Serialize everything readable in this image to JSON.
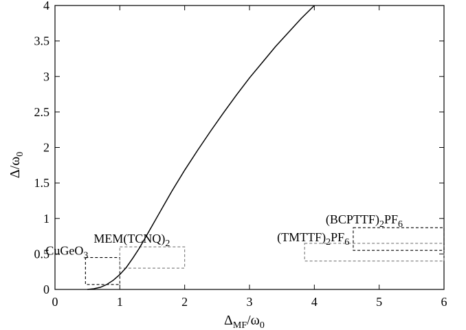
{
  "chart_data": {
    "type": "line",
    "xlabel": "Δ",
    "xlabel_sub": "MF",
    "xlabel_tail": "/ω",
    "xlabel_tail_sub": "0",
    "ylabel": "Δ/ω",
    "ylabel_sub": "0",
    "xlim": [
      0,
      6
    ],
    "ylim": [
      0,
      4
    ],
    "x_ticks": [
      0,
      1,
      2,
      3,
      4,
      5,
      6
    ],
    "x_tick_labels": [
      "0",
      "1",
      "2",
      "3",
      "4",
      "5",
      "6"
    ],
    "y_ticks": [
      0,
      0.5,
      1,
      1.5,
      2,
      2.5,
      3,
      3.5,
      4
    ],
    "y_tick_labels": [
      "0",
      "0.5",
      "1",
      "1.5",
      "2",
      "2.5",
      "3",
      "3.5",
      "4"
    ],
    "grid": false,
    "series": [
      {
        "x": [
          0.5,
          0.6,
          0.7,
          0.8,
          0.9,
          1.0,
          1.1,
          1.2,
          1.3,
          1.4,
          1.5,
          1.6,
          1.7,
          1.8,
          1.9,
          2.0,
          2.2,
          2.4,
          2.6,
          2.8,
          3.0,
          3.2,
          3.4,
          3.6,
          3.8,
          4.0
        ],
        "y": [
          0.0,
          0.01,
          0.03,
          0.07,
          0.13,
          0.21,
          0.31,
          0.44,
          0.58,
          0.74,
          0.9,
          1.06,
          1.22,
          1.38,
          1.53,
          1.68,
          1.96,
          2.23,
          2.49,
          2.74,
          2.98,
          3.2,
          3.42,
          3.62,
          3.82,
          4.0
        ]
      }
    ],
    "annotations": [
      {
        "label_parts": [
          [
            "CuGeO",
            false
          ],
          [
            "3",
            true
          ]
        ],
        "x": 0.47,
        "y": 0.45,
        "anchor": "end",
        "dx": 0,
        "dy": -4
      },
      {
        "label_parts": [
          [
            "MEM(TCNQ)",
            false
          ],
          [
            "2",
            true
          ]
        ],
        "x": 1.0,
        "y": 0.6,
        "anchor": "end-overflow",
        "dx": 0,
        "dy": 0
      },
      {
        "label_parts": [
          [
            "(TMTTF)",
            false
          ],
          [
            "2",
            true
          ],
          [
            "PF",
            false
          ],
          [
            "6",
            true
          ]
        ],
        "x": 3.85,
        "y": 0.62,
        "anchor": "mid",
        "dx": 0,
        "dy": 0
      },
      {
        "label_parts": [
          [
            "(BCPTTF)",
            false
          ],
          [
            "2",
            true
          ],
          [
            "PF",
            false
          ],
          [
            "6",
            true
          ]
        ],
        "x": 4.6,
        "y": 0.87,
        "anchor": "mid",
        "dx": 0,
        "dy": 0
      }
    ],
    "ranges": [
      {
        "name": "CuGeO3",
        "x": [
          0.47,
          1.0
        ],
        "y": [
          0.07,
          0.45
        ],
        "color": "#000000"
      },
      {
        "name": "MEM(TCNQ)2",
        "x": [
          1.0,
          2.0
        ],
        "y": [
          0.3,
          0.6
        ],
        "color": "#777777"
      },
      {
        "name": "(TMTTF)2PF6",
        "x": [
          3.85,
          6.0
        ],
        "y": [
          0.4,
          0.65
        ],
        "color": "#777777"
      },
      {
        "name": "(BCPTTF)2PF6",
        "x": [
          4.6,
          6.0
        ],
        "y": [
          0.55,
          0.87
        ],
        "color": "#000000"
      }
    ]
  }
}
